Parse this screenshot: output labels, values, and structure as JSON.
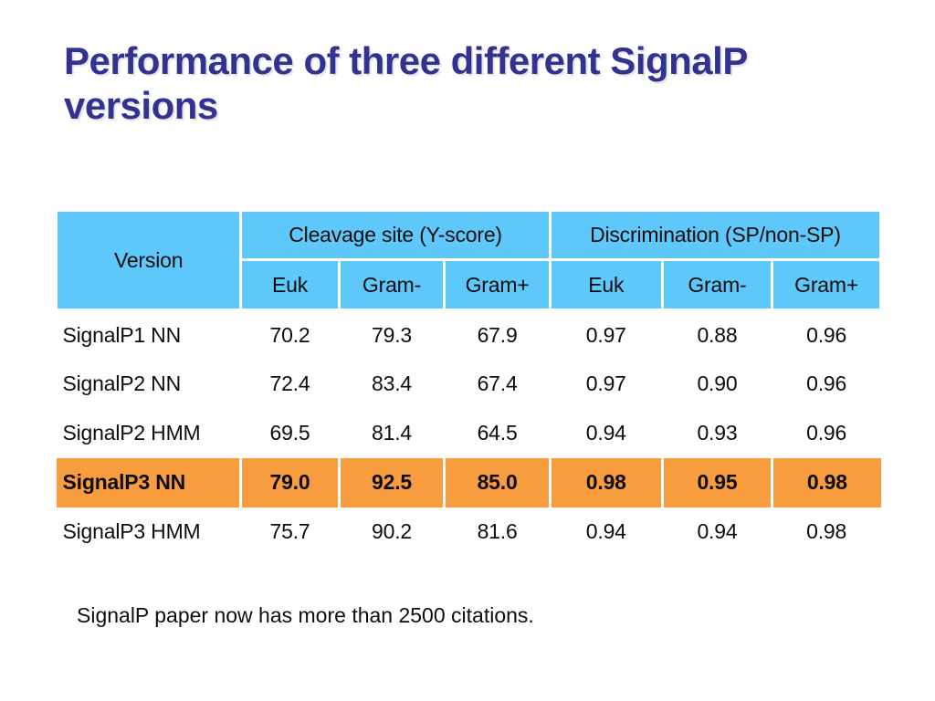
{
  "slide": {
    "title_lines": [
      "Performance of three different SignalP",
      "versions"
    ],
    "footnote": "SignalP paper now has more than 2500 citations."
  },
  "colors": {
    "title_text": "#323390",
    "table_header_bg": "#5fc8fa",
    "highlight_row_bg": "#f89c40",
    "body_text": "#0d0d0d",
    "background": "#ffffff"
  },
  "table": {
    "version_header": "Version",
    "group_headers": [
      {
        "label": "Cleavage site (Y-score)",
        "colspan": 3
      },
      {
        "label": "Discrimination (SP/non-SP)",
        "colspan": 3
      }
    ],
    "sub_headers": [
      "Euk",
      "Gram-",
      "Gram+",
      "Euk",
      "Gram-",
      "Gram+"
    ],
    "rows": [
      {
        "version": "SignalP1 NN",
        "values": [
          "70.2",
          "79.3",
          "67.9",
          "0.97",
          "0.88",
          "0.96"
        ],
        "highlighted": false
      },
      {
        "version": "SignalP2 NN",
        "values": [
          "72.4",
          "83.4",
          "67.4",
          "0.97",
          "0.90",
          "0.96"
        ],
        "highlighted": false
      },
      {
        "version": "SignalP2 HMM",
        "values": [
          "69.5",
          "81.4",
          "64.5",
          "0.94",
          "0.93",
          "0.96"
        ],
        "highlighted": false
      },
      {
        "version": "SignalP3 NN",
        "values": [
          "79.0",
          "92.5",
          "85.0",
          "0.98",
          "0.95",
          "0.98"
        ],
        "highlighted": true
      },
      {
        "version": "SignalP3 HMM",
        "values": [
          "75.7",
          "90.2",
          "81.6",
          "0.94",
          "0.94",
          "0.98"
        ],
        "highlighted": false
      }
    ]
  }
}
